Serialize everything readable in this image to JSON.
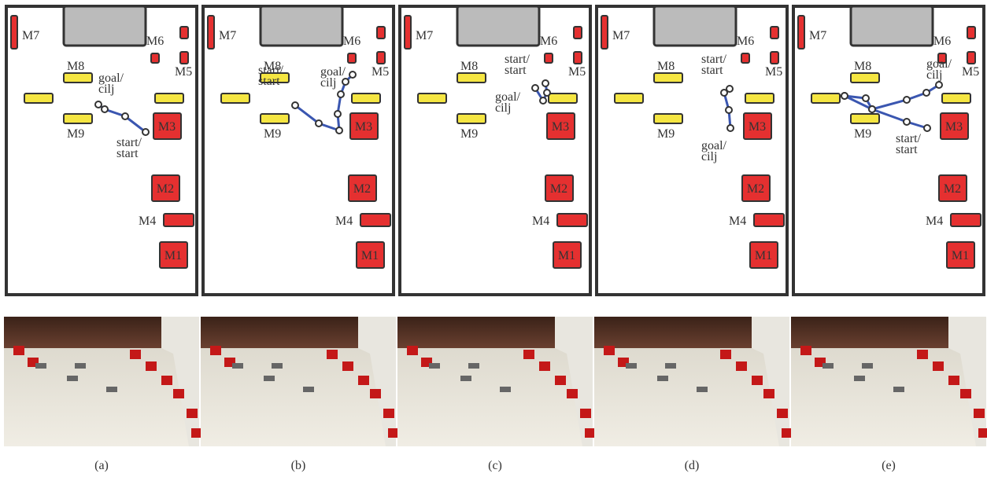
{
  "map_labels": {
    "m1": "M1",
    "m2": "M2",
    "m3": "M3",
    "m4": "M4",
    "m5": "M5",
    "m6": "M6",
    "m7": "M7",
    "m8": "M8",
    "m9": "M9"
  },
  "panels": [
    {
      "caption": "(a)",
      "goal_label": [
        "goal/",
        "cilj"
      ],
      "start_label": [
        "start/",
        "start"
      ]
    },
    {
      "caption": "(b)",
      "goal_label": [
        "goal/",
        "cilj"
      ],
      "start_label": [
        "start/",
        "start"
      ]
    },
    {
      "caption": "(c)",
      "goal_label": [
        "goal/",
        "cilj"
      ],
      "start_label": [
        "start/",
        "start"
      ]
    },
    {
      "caption": "(d)",
      "goal_label": [
        "goal/",
        "cilj"
      ],
      "start_label": [
        "start/",
        "start"
      ]
    },
    {
      "caption": "(e)",
      "goal_label": [
        "goal/",
        "cilj"
      ],
      "start_label": [
        "start/",
        "start"
      ]
    }
  ]
}
